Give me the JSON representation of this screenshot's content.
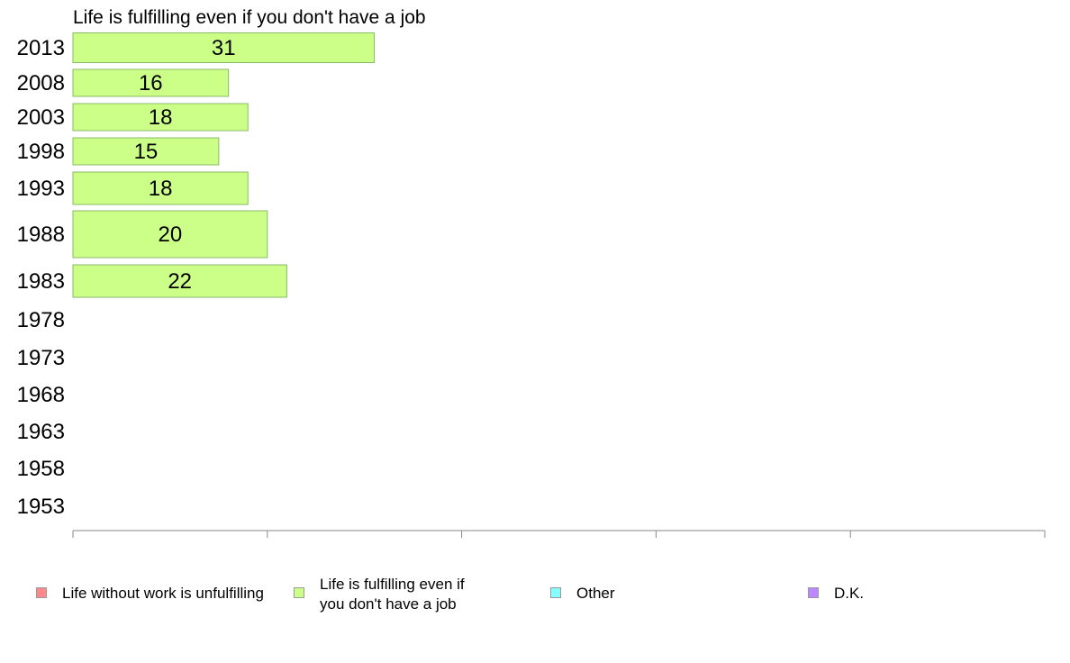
{
  "chart_data": {
    "type": "bar",
    "orientation": "horizontal",
    "title": "Life is fulfilling even if you don't have a job",
    "categories": [
      "2013",
      "2008",
      "2003",
      "1998",
      "1993",
      "1988",
      "1983",
      "1978",
      "1973",
      "1968",
      "1963",
      "1958",
      "1953"
    ],
    "series": [
      {
        "name": "Life is fulfilling even if you don't have a job",
        "values": [
          31,
          16,
          18,
          15,
          18,
          20,
          22,
          null,
          null,
          null,
          null,
          null,
          null
        ],
        "color": "#ccff88"
      }
    ],
    "xlim": [
      0,
      100
    ],
    "xticks": [
      0,
      20,
      40,
      60,
      80,
      100
    ],
    "grid": false,
    "legend_position": "bottom"
  },
  "legend": {
    "items": [
      {
        "label": "Life without work is unfulfilling",
        "color": "#ff8888"
      },
      {
        "label": "Life is fulfilling even if you don't have a job",
        "color": "#ccff88"
      },
      {
        "label": "Other",
        "color": "#88ffff"
      },
      {
        "label": "D.K.",
        "color": "#bb88ff"
      }
    ]
  }
}
